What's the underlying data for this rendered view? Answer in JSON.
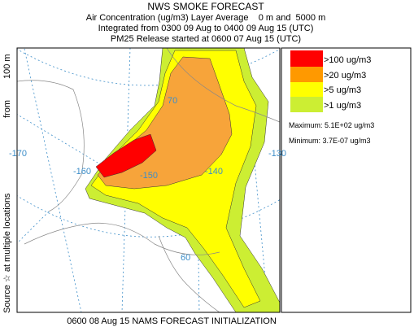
{
  "header": {
    "title": "NWS SMOKE FORECAST",
    "lines": [
      "Air Concentration (ug/m3) Layer Average    0 m and  5000 m",
      "Integrated from 0300 09 Aug to 0400 09 Aug 15 (UTC)",
      "PM25 Release started at 0600 07 Aug 15 (UTC)"
    ]
  },
  "side_label": [
    "Source ☆ at multiple locations",
    "from",
    "100 m"
  ],
  "legend": {
    "items": [
      ">100 ug/m3",
      ">20 ug/m3",
      ">5 ug/m3",
      ">1 ug/m3"
    ],
    "maximum": "Maximum: 5.1E+02 ug/m3",
    "minimum": "Minimum: 3.7E-07 ug/m3"
  },
  "map": {
    "labels": [
      "70",
      "-170",
      "-160",
      "-150",
      "-140",
      "-130",
      "60"
    ]
  },
  "footer": "0600 08 Aug 15 NAMS FORECAST INITIALIZATION"
}
